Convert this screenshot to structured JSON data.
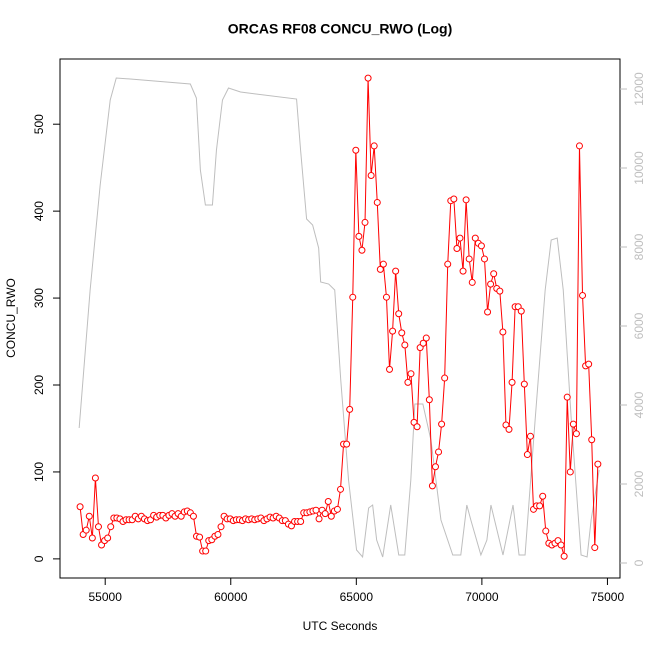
{
  "chart_data": {
    "type": "line",
    "title": "ORCAS RF08 CONCU_RWO (Log)",
    "xlabel": "UTC Seconds",
    "ylabel": "CONCU_RWO",
    "xlim": [
      53200,
      75500
    ],
    "xticks": [
      55000,
      60000,
      65000,
      70000,
      75000
    ],
    "ylim": [
      -22,
      575
    ],
    "yticks": [
      0,
      100,
      200,
      300,
      400,
      500
    ],
    "y2lim": [
      -380,
      12760
    ],
    "y2ticks": [
      0,
      2000,
      4000,
      6000,
      8000,
      10000,
      12000
    ],
    "series": [
      {
        "color": "#bebebe",
        "axis": "y2",
        "markers": false,
        "x": [
          53963,
          54400,
          54800,
          55200,
          55440,
          56000,
          58390,
          58630,
          58790,
          58990,
          59270,
          59430,
          59670,
          59910,
          60390,
          62620,
          62780,
          63020,
          63260,
          63500,
          63580,
          63900,
          64140,
          64380,
          64690,
          65010,
          65250,
          65490,
          65650,
          65810,
          66050,
          66370,
          66530,
          66690,
          66930,
          67170,
          67330,
          67650,
          67970,
          68370,
          68840,
          69160,
          69400,
          69560,
          69960,
          70200,
          70360,
          70600,
          70840,
          71080,
          71240,
          71480,
          71720,
          72120,
          72520,
          72760,
          73000,
          73240,
          73560,
          73950,
          74190,
          74350,
          74670
        ],
        "values": [
          3418,
          6911,
          9570,
          11722,
          12278,
          12253,
          12127,
          11772,
          9949,
          9063,
          9063,
          10456,
          11722,
          12025,
          11924,
          11747,
          10456,
          8709,
          8557,
          7975,
          7114,
          7063,
          6911,
          4633,
          2101,
          329,
          152,
          1392,
          1468,
          582,
          152,
          1468,
          835,
          203,
          203,
          2101,
          4025,
          4025,
          3114,
          1089,
          203,
          203,
          1468,
          1089,
          203,
          582,
          1468,
          835,
          203,
          962,
          1468,
          203,
          203,
          3620,
          6911,
          8177,
          8228,
          6911,
          3620,
          203,
          152,
          1089,
          2354
        ]
      },
      {
        "color": "#ff0000",
        "markers": true,
        "x": [
          54000,
          54122,
          54244,
          54366,
          54488,
          54610,
          54732,
          54854,
          54976,
          55098,
          55220,
          55342,
          55464,
          55586,
          55708,
          55830,
          55952,
          56074,
          56196,
          56318,
          56440,
          56562,
          56684,
          56806,
          56928,
          57050,
          57172,
          57294,
          57416,
          57538,
          57660,
          57782,
          57904,
          58026,
          58148,
          58270,
          58392,
          58514,
          58636,
          58758,
          58880,
          59002,
          59124,
          59246,
          59368,
          59490,
          59612,
          59734,
          59856,
          59978,
          60100,
          60222,
          60344,
          60466,
          60588,
          60710,
          60832,
          60954,
          61076,
          61198,
          61320,
          61442,
          61564,
          61686,
          61808,
          61930,
          62052,
          62174,
          62296,
          62418,
          62540,
          62662,
          62784,
          62906,
          63028,
          63150,
          63272,
          63394,
          63516,
          63638,
          63760,
          63882,
          64004,
          64126,
          64248,
          64370,
          64492,
          64614,
          64736,
          64858,
          64980,
          65102,
          65224,
          65346,
          65468,
          65590,
          65712,
          65834,
          65956,
          66078,
          66200,
          66322,
          66444,
          66566,
          66688,
          66810,
          66932,
          67054,
          67176,
          67298,
          67420,
          67542,
          67664,
          67786,
          67908,
          68030,
          68152,
          68274,
          68396,
          68518,
          68640,
          68762,
          68884,
          69006,
          69128,
          69250,
          69372,
          69494,
          69616,
          69738,
          69860,
          69982,
          70104,
          70226,
          70348,
          70470,
          70592,
          70714,
          70836,
          70958,
          71080,
          71202,
          71324,
          71446,
          71568,
          71690,
          71812,
          71934,
          72056,
          72178,
          72300,
          72422,
          72544,
          72666,
          72788,
          72910,
          73032,
          73154,
          73276,
          73398,
          73520,
          73642,
          73764,
          73886,
          74008,
          74130,
          74252,
          74374,
          74496,
          74618
        ],
        "values": [
          60,
          28,
          33,
          49,
          24,
          93,
          37,
          16,
          21,
          24,
          37,
          47,
          47,
          46,
          43,
          45,
          45,
          45,
          49,
          46,
          49,
          46,
          44,
          45,
          50,
          48,
          50,
          50,
          47,
          50,
          52,
          49,
          52,
          49,
          54,
          55,
          53,
          49,
          26,
          25,
          9,
          9,
          21,
          22,
          26,
          28,
          37,
          49,
          46,
          46,
          44,
          45,
          45,
          44,
          46,
          45,
          46,
          45,
          46,
          47,
          44,
          46,
          48,
          47,
          49,
          47,
          44,
          44,
          40,
          38,
          43,
          43,
          43,
          53,
          53,
          54,
          55,
          56,
          46,
          56,
          52,
          66,
          49,
          55,
          57,
          80,
          132,
          132,
          172,
          301,
          470,
          371,
          355,
          387,
          553,
          441,
          475,
          410,
          333,
          339,
          301,
          218,
          262,
          331,
          282,
          260,
          246,
          203,
          213,
          157,
          152,
          243,
          248,
          254,
          183,
          84,
          106,
          123,
          155,
          208,
          339,
          412,
          414,
          357,
          369,
          331,
          413,
          345,
          318,
          369,
          363,
          360,
          345,
          284,
          316,
          328,
          311,
          308,
          261,
          154,
          149,
          203,
          290,
          290,
          285,
          201,
          120,
          141,
          57,
          61,
          61,
          72,
          32,
          18,
          16,
          18,
          21,
          16,
          3,
          186,
          100,
          155,
          144,
          475,
          303,
          222,
          224,
          137,
          13,
          109
        ]
      }
    ]
  }
}
